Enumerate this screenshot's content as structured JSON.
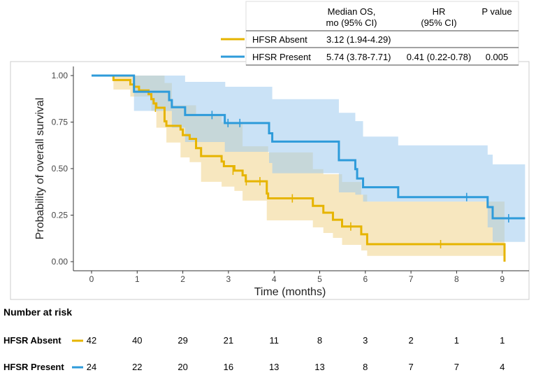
{
  "chart_data": {
    "type": "line",
    "subtype": "kaplan-meier",
    "xlabel": "Time (months)",
    "ylabel": "Probability of overall survival",
    "xlim": [
      -0.4,
      9.5
    ],
    "ylim": [
      0,
      1
    ],
    "x_ticks": [
      0,
      1,
      2,
      3,
      4,
      5,
      6,
      7,
      8,
      9
    ],
    "y_ticks": [
      {
        "v": 1,
        "l": "1.00"
      },
      {
        "v": 0.75,
        "l": "0.75"
      },
      {
        "v": 0.5,
        "l": "0.50"
      },
      {
        "v": 0.25,
        "l": "0.25"
      },
      {
        "v": 0,
        "l": "0.00"
      }
    ],
    "series": [
      {
        "name": "HFSR Absent",
        "color": "#E6B400",
        "band_color": "#F0D48A",
        "steps": [
          [
            0.48,
            1.0
          ],
          [
            0.48,
            0.976
          ],
          [
            0.85,
            0.952
          ],
          [
            0.93,
            0.94
          ],
          [
            1.04,
            0.92
          ],
          [
            1.25,
            0.9
          ],
          [
            1.31,
            0.873
          ],
          [
            1.36,
            0.85
          ],
          [
            1.42,
            0.827
          ],
          [
            1.6,
            0.754
          ],
          [
            1.64,
            0.73
          ],
          [
            1.95,
            0.71
          ],
          [
            2.0,
            0.68
          ],
          [
            2.15,
            0.66
          ],
          [
            2.29,
            0.61
          ],
          [
            2.4,
            0.567
          ],
          [
            2.85,
            0.538
          ],
          [
            2.9,
            0.513
          ],
          [
            3.13,
            0.489
          ],
          [
            3.31,
            0.464
          ],
          [
            3.38,
            0.432
          ],
          [
            3.84,
            0.366
          ],
          [
            3.87,
            0.34
          ],
          [
            4.85,
            0.3
          ],
          [
            5.08,
            0.263
          ],
          [
            5.29,
            0.225
          ],
          [
            5.49,
            0.189
          ],
          [
            5.91,
            0.147
          ],
          [
            6.04,
            0.094
          ],
          [
            9.05,
            0.0
          ]
        ],
        "upper": [
          [
            0.48,
            1.0
          ],
          [
            1.6,
            0.96
          ],
          [
            1.76,
            0.84
          ],
          [
            2.29,
            0.79
          ],
          [
            2.85,
            0.75
          ],
          [
            3.31,
            0.62
          ],
          [
            3.87,
            0.587
          ],
          [
            4.85,
            0.497
          ],
          [
            5.08,
            0.47
          ],
          [
            5.49,
            0.428
          ],
          [
            5.91,
            0.36
          ],
          [
            6.04,
            0.323
          ],
          [
            9.05,
            0.323
          ]
        ],
        "lower": [
          [
            0.48,
            0.925
          ],
          [
            0.85,
            0.887
          ],
          [
            1.31,
            0.81
          ],
          [
            1.42,
            0.72
          ],
          [
            1.64,
            0.64
          ],
          [
            1.95,
            0.56
          ],
          [
            2.15,
            0.535
          ],
          [
            2.4,
            0.429
          ],
          [
            2.85,
            0.403
          ],
          [
            3.13,
            0.38
          ],
          [
            3.31,
            0.328
          ],
          [
            3.84,
            0.222
          ],
          [
            4.85,
            0.184
          ],
          [
            5.08,
            0.154
          ],
          [
            5.29,
            0.128
          ],
          [
            5.49,
            0.09
          ],
          [
            5.91,
            0.06
          ],
          [
            6.04,
            0.031
          ],
          [
            9.05,
            0.031
          ]
        ],
        "censored": [
          [
            1.4,
            0.827
          ],
          [
            3.1,
            0.489
          ],
          [
            3.39,
            0.432
          ],
          [
            3.69,
            0.432
          ],
          [
            4.4,
            0.34
          ],
          [
            5.68,
            0.189
          ],
          [
            7.65,
            0.094
          ]
        ]
      },
      {
        "name": "HFSR Present",
        "color": "#2E9BDA",
        "band_color": "#9FCBEE",
        "steps": [
          [
            0,
            1.0
          ],
          [
            0.93,
            0.913
          ],
          [
            1.7,
            0.868
          ],
          [
            1.76,
            0.83
          ],
          [
            2.05,
            0.788
          ],
          [
            2.92,
            0.745
          ],
          [
            3.89,
            0.69
          ],
          [
            3.96,
            0.645
          ],
          [
            5.42,
            0.545
          ],
          [
            5.78,
            0.497
          ],
          [
            5.82,
            0.447
          ],
          [
            5.95,
            0.4
          ],
          [
            6.72,
            0.347
          ],
          [
            8.68,
            0.293
          ],
          [
            8.79,
            0.233
          ],
          [
            9.5,
            0.233
          ]
        ],
        "upper": [
          [
            0.93,
            1.0
          ],
          [
            2.05,
            0.966
          ],
          [
            2.93,
            0.94
          ],
          [
            3.96,
            0.873
          ],
          [
            5.42,
            0.8
          ],
          [
            5.78,
            0.755
          ],
          [
            5.95,
            0.672
          ],
          [
            6.72,
            0.625
          ],
          [
            8.68,
            0.575
          ],
          [
            8.79,
            0.523
          ],
          [
            9.5,
            0.523
          ]
        ],
        "lower": [
          [
            0.93,
            0.81
          ],
          [
            1.76,
            0.72
          ],
          [
            2.05,
            0.643
          ],
          [
            2.92,
            0.59
          ],
          [
            3.89,
            0.53
          ],
          [
            3.96,
            0.475
          ],
          [
            5.42,
            0.372
          ],
          [
            5.78,
            0.36
          ],
          [
            5.95,
            0.323
          ],
          [
            8.68,
            0.184
          ],
          [
            8.79,
            0.106
          ],
          [
            9.5,
            0.106
          ]
        ],
        "censored": [
          [
            2.64,
            0.788
          ],
          [
            2.99,
            0.745
          ],
          [
            3.25,
            0.745
          ],
          [
            8.22,
            0.347
          ],
          [
            9.14,
            0.233
          ]
        ]
      }
    ]
  },
  "legend_table": {
    "headers": [
      "Median OS,",
      "mo (95% CI)",
      "HR",
      "(95% CI)",
      "P value"
    ],
    "rows": [
      {
        "group": "HFSR Absent",
        "median": "3.12 (1.94-4.29)",
        "hr": "",
        "p": ""
      },
      {
        "group": "HFSR Present",
        "median": "5.74 (3.78-7.71)",
        "hr": "0.41 (0.22-0.78)",
        "p": "0.005"
      }
    ]
  },
  "risk_table": {
    "title": "Number at risk",
    "rows": [
      {
        "group": "HFSR Absent",
        "values": [
          "42",
          "40",
          "29",
          "21",
          "11",
          "8",
          "3",
          "2",
          "1",
          "1"
        ]
      },
      {
        "group": "HFSR Present",
        "values": [
          "24",
          "22",
          "20",
          "16",
          "13",
          "13",
          "8",
          "7",
          "7",
          "4"
        ]
      }
    ]
  }
}
